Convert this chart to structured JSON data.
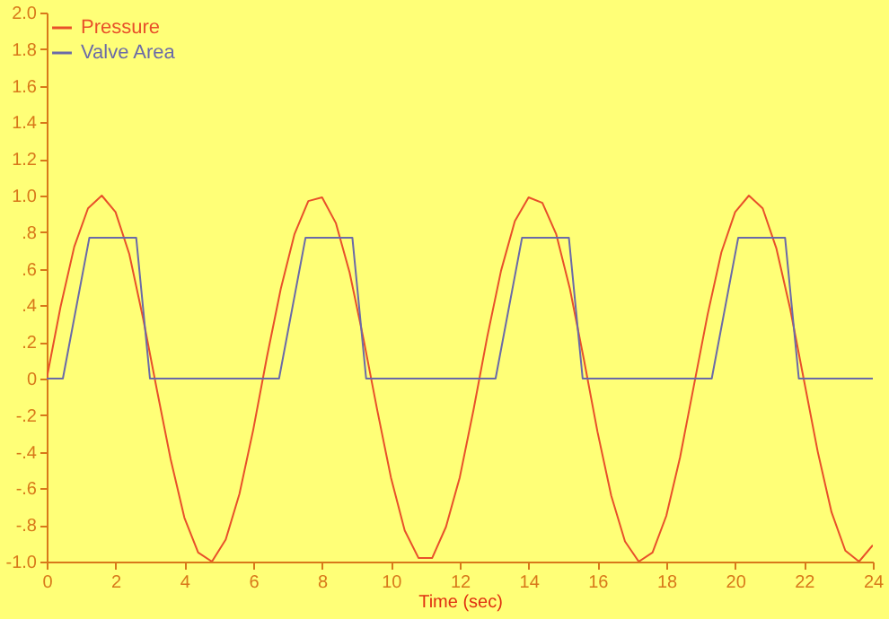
{
  "chart_data": {
    "type": "line",
    "xlabel": "Time (sec)",
    "legend": "top left",
    "grid": false,
    "marker": "none",
    "xlim": [
      0,
      24
    ],
    "xticks": [
      0,
      2,
      4,
      6,
      8,
      10,
      12,
      14,
      16,
      18,
      20,
      22,
      24
    ],
    "ylim": [
      -1.0,
      2.0
    ],
    "yticks": [
      {
        "value": -1.0,
        "label": "-1.0"
      },
      {
        "value": -0.8,
        "label": "-.8"
      },
      {
        "value": -0.6,
        "label": "-.6"
      },
      {
        "value": -0.4,
        "label": "-.4"
      },
      {
        "value": -0.2,
        "label": "-.2"
      },
      0,
      {
        "value": 0.2,
        "label": ".2"
      },
      {
        "value": 0.4,
        "label": ".4"
      },
      {
        "value": 0.6,
        "label": ".6"
      },
      {
        "value": 0.8,
        "label": ".8"
      },
      {
        "value": 1.0,
        "label": "1.0"
      },
      {
        "value": 1.2,
        "label": "1.2"
      },
      {
        "value": 1.4,
        "label": "1.4"
      },
      {
        "value": 1.6,
        "label": "1.6"
      },
      {
        "value": 1.8,
        "label": "1.8"
      },
      {
        "value": 2.0,
        "label": "2.0"
      }
    ],
    "series": [
      {
        "name": "Pressure",
        "color": "#e8502a",
        "x": [
          0,
          0.4,
          0.8,
          1.2,
          1.6,
          2.0,
          2.4,
          2.8,
          3.2,
          3.6,
          4.0,
          4.4,
          4.8,
          5.2,
          5.6,
          6.0,
          6.4,
          6.8,
          7.2,
          7.6,
          8.0,
          8.4,
          8.8,
          9.2,
          9.6,
          10.0,
          10.4,
          10.8,
          11.2,
          11.6,
          12.0,
          12.4,
          12.8,
          13.2,
          13.6,
          14.0,
          14.4,
          14.8,
          15.2,
          15.6,
          16.0,
          16.4,
          16.8,
          17.2,
          17.6,
          18.0,
          18.4,
          18.8,
          19.2,
          19.6,
          20.0,
          20.4,
          20.8,
          21.2,
          21.6,
          22.0,
          22.4,
          22.8,
          23.2,
          23.6,
          24.0
        ],
        "values": [
          0,
          0.39,
          0.72,
          0.93,
          1.0,
          0.91,
          0.68,
          0.33,
          -0.06,
          -0.44,
          -0.76,
          -0.95,
          -1.0,
          -0.88,
          -0.63,
          -0.28,
          0.12,
          0.49,
          0.79,
          0.97,
          0.99,
          0.85,
          0.58,
          0.22,
          -0.17,
          -0.54,
          -0.83,
          -0.98,
          -0.98,
          -0.81,
          -0.54,
          -0.17,
          0.23,
          0.59,
          0.86,
          0.99,
          0.96,
          0.79,
          0.49,
          0.11,
          -0.29,
          -0.64,
          -0.89,
          -1.0,
          -0.95,
          -0.75,
          -0.43,
          -0.04,
          0.35,
          0.69,
          0.91,
          1.0,
          0.93,
          0.71,
          0.38,
          -0.01,
          -0.4,
          -0.73,
          -0.94,
          -1.0,
          -0.91
        ]
      },
      {
        "name": "Valve Area",
        "color": "#6a6aa8",
        "x": [
          0,
          0.47,
          1.24,
          2.6,
          3.0,
          6.75,
          7.52,
          8.88,
          9.28,
          13.04,
          13.81,
          15.17,
          15.57,
          19.32,
          20.09,
          21.45,
          21.85,
          24
        ],
        "values": [
          0,
          0,
          0.77,
          0.77,
          0,
          0,
          0.77,
          0.77,
          0,
          0,
          0.77,
          0.77,
          0,
          0,
          0.77,
          0.77,
          0,
          0
        ]
      }
    ]
  }
}
